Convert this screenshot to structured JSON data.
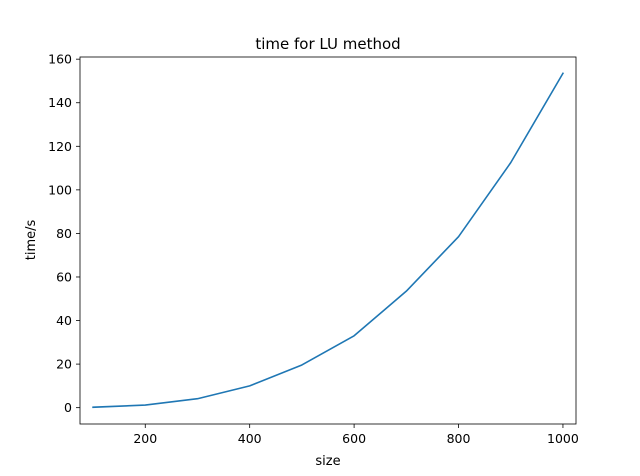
{
  "chart_data": {
    "type": "line",
    "title": "time for LU method",
    "xlabel": "size",
    "ylabel": "time/s",
    "xlim": [
      75,
      1025
    ],
    "ylim": [
      -7.5,
      161
    ],
    "xticks": [
      200,
      400,
      600,
      800,
      1000
    ],
    "yticks": [
      0,
      20,
      40,
      60,
      80,
      100,
      120,
      140,
      160
    ],
    "grid": false,
    "series": [
      {
        "color": "#1f77b4",
        "x": [
          100,
          200,
          300,
          400,
          500,
          600,
          700,
          800,
          900,
          1000
        ],
        "y": [
          0.2,
          1.2,
          4.1,
          10.0,
          19.6,
          33.0,
          53.5,
          78.5,
          112.5,
          153.5
        ]
      }
    ]
  }
}
